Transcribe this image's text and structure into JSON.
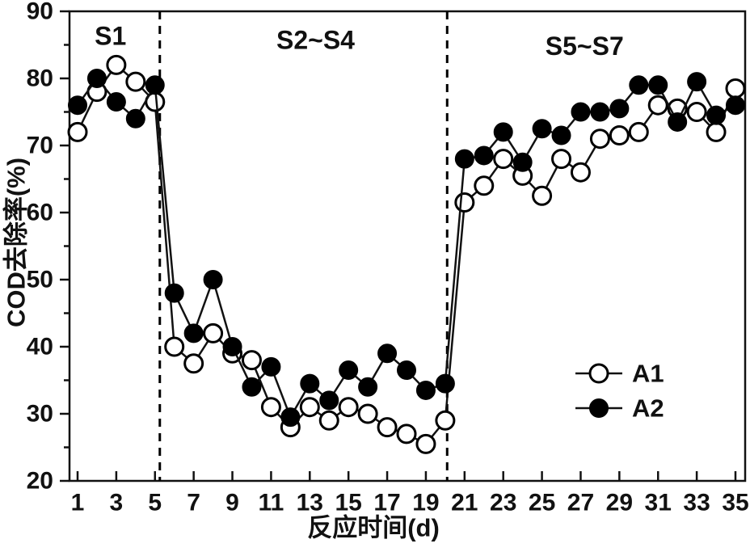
{
  "figure": {
    "background": "#ffffff",
    "ink_color": "#111111",
    "marker_fill_color": "#000000",
    "marker_open_color": "#ffffff",
    "y_axis": {
      "label": "COD去除率(%)",
      "min": 20,
      "max": 90,
      "major_step": 10,
      "minor_step": 5,
      "tick_labels": [
        "20",
        "30",
        "40",
        "50",
        "60",
        "70",
        "80",
        "90"
      ]
    },
    "x_axis": {
      "label": "反应时间(d)",
      "min": 1,
      "max": 35,
      "tick_labels": [
        "1",
        "3",
        "5",
        "7",
        "9",
        "11",
        "13",
        "15",
        "17",
        "19",
        "21",
        "23",
        "25",
        "27",
        "29",
        "31",
        "33",
        "35"
      ]
    },
    "legend": [
      {
        "label": "A1",
        "marker": "open-circle"
      },
      {
        "label": "A2",
        "marker": "filled-circle"
      }
    ]
  },
  "chart_data": {
    "type": "line",
    "title": "",
    "xlabel": "反应时间(d)",
    "ylabel": "COD去除率(%)",
    "xlim": [
      1,
      35
    ],
    "ylim": [
      20,
      90
    ],
    "grid": false,
    "legend_position": "lower-right",
    "x": [
      1,
      2,
      3,
      4,
      5,
      6,
      7,
      8,
      9,
      10,
      11,
      12,
      13,
      14,
      15,
      16,
      17,
      18,
      19,
      20,
      21,
      22,
      23,
      24,
      25,
      26,
      27,
      28,
      29,
      30,
      31,
      32,
      33,
      34,
      35
    ],
    "series": [
      {
        "name": "A1",
        "marker": "open-circle",
        "values": [
          72,
          78,
          82,
          79.5,
          76.5,
          40,
          37.5,
          42,
          39,
          38,
          31,
          28,
          31,
          29,
          31,
          30,
          28,
          27,
          25.5,
          29,
          61.5,
          64,
          68,
          65.5,
          62.5,
          68,
          66,
          71,
          71.5,
          72,
          76,
          75.5,
          75,
          72,
          78.5
        ]
      },
      {
        "name": "A2",
        "marker": "filled-circle",
        "values": [
          76,
          80,
          76.5,
          74,
          79,
          48,
          42,
          50,
          40,
          34,
          37,
          29.5,
          34.5,
          32,
          36.5,
          34,
          39,
          36.5,
          33.5,
          34.5,
          68,
          68.5,
          72,
          67.5,
          72.5,
          71.5,
          75,
          75,
          75.5,
          79,
          79,
          73.5,
          79.5,
          74.5,
          76
        ]
      }
    ],
    "phase_dividers_x": [
      5.25,
      20.1
    ],
    "annotations": [
      {
        "text": "S1",
        "x": 2.7,
        "y": 86.3
      },
      {
        "text": "S2~S4",
        "x": 13.3,
        "y": 85.7
      },
      {
        "text": "S5~S7",
        "x": 27.2,
        "y": 84.8
      }
    ]
  }
}
